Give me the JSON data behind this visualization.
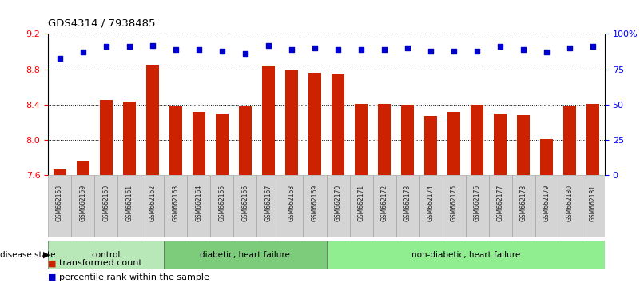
{
  "title": "GDS4314 / 7938485",
  "samples": [
    "GSM662158",
    "GSM662159",
    "GSM662160",
    "GSM662161",
    "GSM662162",
    "GSM662163",
    "GSM662164",
    "GSM662165",
    "GSM662166",
    "GSM662167",
    "GSM662168",
    "GSM662169",
    "GSM662170",
    "GSM662171",
    "GSM662172",
    "GSM662173",
    "GSM662174",
    "GSM662175",
    "GSM662176",
    "GSM662177",
    "GSM662178",
    "GSM662179",
    "GSM662180",
    "GSM662181"
  ],
  "bar_values": [
    7.67,
    7.76,
    8.45,
    8.44,
    8.85,
    8.38,
    8.32,
    8.3,
    8.38,
    8.84,
    8.79,
    8.76,
    8.75,
    8.41,
    8.41,
    8.4,
    8.27,
    8.32,
    8.4,
    8.3,
    8.28,
    8.01,
    8.39,
    8.41
  ],
  "percentile_values": [
    83,
    87,
    91,
    91,
    92,
    89,
    89,
    88,
    86,
    92,
    89,
    90,
    89,
    89,
    89,
    90,
    88,
    88,
    88,
    91,
    89,
    87,
    90,
    91
  ],
  "bar_color": "#cc2200",
  "dot_color": "#0000cc",
  "ylim_left": [
    7.6,
    9.2
  ],
  "ylim_right": [
    0,
    100
  ],
  "yticks_left": [
    7.6,
    8.0,
    8.4,
    8.8,
    9.2
  ],
  "yticks_right": [
    0,
    25,
    50,
    75,
    100
  ],
  "ytick_labels_right": [
    "0",
    "25",
    "50",
    "75",
    "100%"
  ],
  "dotted_lines": [
    8.0,
    8.4,
    8.8,
    9.2
  ],
  "group_data": [
    {
      "label": "control",
      "start": 0,
      "end": 5,
      "color": "#b8e8b8"
    },
    {
      "label": "diabetic, heart failure",
      "start": 5,
      "end": 12,
      "color": "#7ccc7c"
    },
    {
      "label": "non-diabetic, heart failure",
      "start": 12,
      "end": 24,
      "color": "#90ee90"
    }
  ],
  "legend_items": [
    {
      "label": "transformed count",
      "color": "#cc2200"
    },
    {
      "label": "percentile rank within the sample",
      "color": "#0000cc"
    }
  ],
  "disease_state_label": "disease state"
}
